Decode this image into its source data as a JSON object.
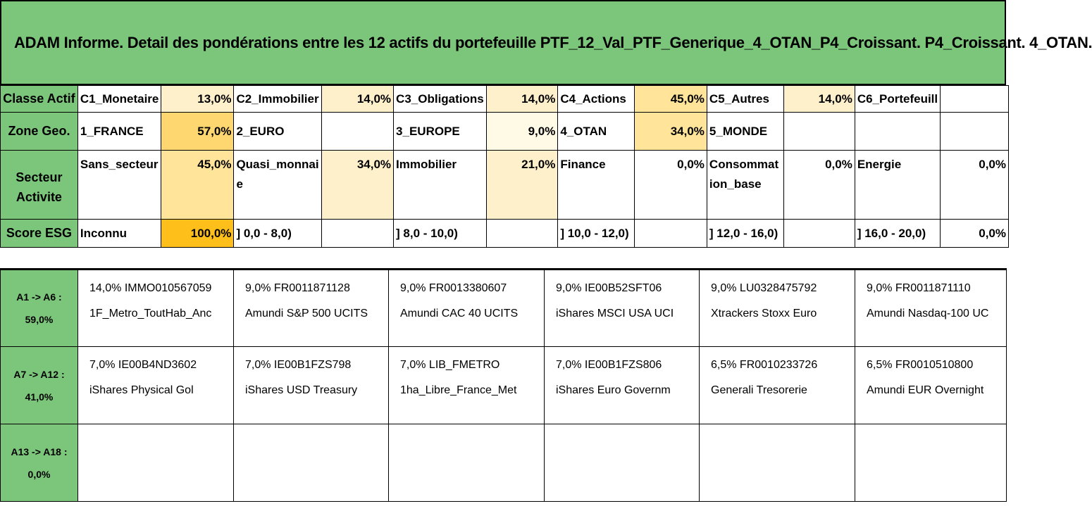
{
  "title": "ADAM Informe. Detail des pondérations entre les 12 actifs du portefeuille PTF_12_Val_PTF_Generique_4_OTAN_P4_Croissant. P4_Croissant. 4_OTAN.",
  "classe": {
    "label": "Classe Actif",
    "items": [
      {
        "name": "C1_Monetaire",
        "pct": "13,0%"
      },
      {
        "name": "C2_Immobilier",
        "pct": "14,0%"
      },
      {
        "name": "C3_Obligations",
        "pct": "14,0%"
      },
      {
        "name": "C4_Actions",
        "pct": "45,0%"
      },
      {
        "name": "C5_Autres",
        "pct": "14,0%"
      },
      {
        "name": "C6_Portefeuill",
        "pct": ""
      }
    ]
  },
  "zone": {
    "label": "Zone Geo.",
    "items": [
      {
        "name": "1_FRANCE",
        "pct": "57,0%"
      },
      {
        "name": "2_EURO",
        "pct": ""
      },
      {
        "name": "3_EUROPE",
        "pct": "9,0%"
      },
      {
        "name": "4_OTAN",
        "pct": "34,0%"
      },
      {
        "name": "5_MONDE",
        "pct": ""
      },
      {
        "name": "",
        "pct": ""
      }
    ]
  },
  "secteur": {
    "label": "Secteur Activite",
    "items": [
      {
        "name": "Sans_secteur",
        "pct": "45,0%"
      },
      {
        "name": "Quasi_monnaie",
        "pct": "34,0%"
      },
      {
        "name": "Immobilier",
        "pct": "21,0%"
      },
      {
        "name": "Finance",
        "pct": "0,0%"
      },
      {
        "name": "Consommation_base",
        "pct": "0,0%"
      },
      {
        "name": "Energie",
        "pct": "0,0%"
      }
    ]
  },
  "esg": {
    "label": "Score ESG",
    "items": [
      {
        "name": "Inconnu",
        "pct": "100,0%"
      },
      {
        "name": "] 0,0 - 8,0)",
        "pct": ""
      },
      {
        "name": "] 8,0 - 10,0)",
        "pct": ""
      },
      {
        "name": "] 10,0 - 12,0)",
        "pct": ""
      },
      {
        "name": "] 12,0 - 16,0)",
        "pct": ""
      },
      {
        "name": "] 16,0 - 20,0)",
        "pct": "0,0%"
      }
    ]
  },
  "assets": [
    {
      "label": "A1 -> A6 :",
      "total": "59,0%",
      "items": [
        {
          "code": "14,0% IMMO010567059",
          "name": "1F_Metro_ToutHab_Anc"
        },
        {
          "code": "9,0% FR0011871128",
          "name": "Amundi S&P 500 UCITS"
        },
        {
          "code": "9,0% FR0013380607",
          "name": "Amundi CAC 40 UCITS"
        },
        {
          "code": "9,0% IE00B52SFT06",
          "name": "iShares MSCI USA UCI"
        },
        {
          "code": "9,0% LU0328475792",
          "name": "Xtrackers Stoxx Euro"
        },
        {
          "code": "9,0% FR0011871110",
          "name": "Amundi Nasdaq-100 UC"
        }
      ]
    },
    {
      "label": "A7 -> A12 :",
      "total": "41,0%",
      "items": [
        {
          "code": "7,0% IE00B4ND3602",
          "name": "iShares Physical Gol"
        },
        {
          "code": "7,0% IE00B1FZS798",
          "name": "iShares USD Treasury"
        },
        {
          "code": "7,0% LIB_FMETRO",
          "name": "1ha_Libre_France_Met"
        },
        {
          "code": "7,0% IE00B1FZS806",
          "name": "iShares Euro Governm"
        },
        {
          "code": "6,5% FR0010233726",
          "name": "Generali Tresorerie"
        },
        {
          "code": "6,5% FR0010510800",
          "name": "Amundi EUR Overnight"
        }
      ]
    },
    {
      "label": "A13 -> A18 :",
      "total": "0,0%",
      "items": [
        {
          "code": "",
          "name": ""
        },
        {
          "code": "",
          "name": ""
        },
        {
          "code": "",
          "name": ""
        },
        {
          "code": "",
          "name": ""
        },
        {
          "code": "",
          "name": ""
        },
        {
          "code": "",
          "name": ""
        }
      ]
    }
  ]
}
